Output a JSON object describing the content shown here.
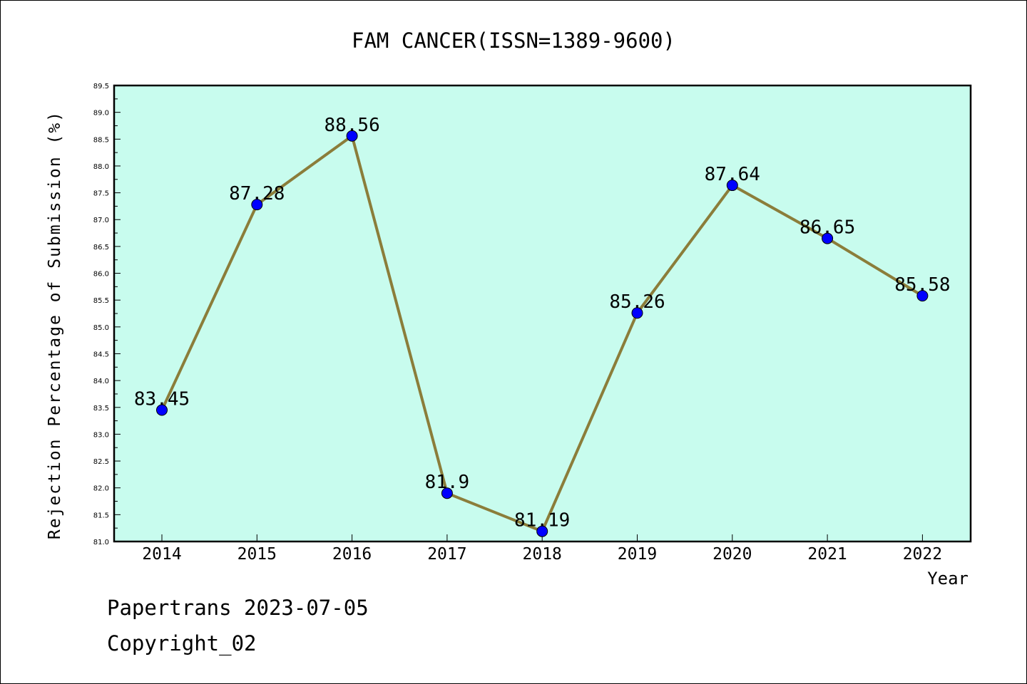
{
  "chart_data": {
    "type": "line",
    "title": "FAM CANCER(ISSN=1389-9600)",
    "xlabel": "Year",
    "ylabel": "Rejection Percentage of Submission (%)",
    "categories": [
      "2014",
      "2015",
      "2016",
      "2017",
      "2018",
      "2019",
      "2020",
      "2021",
      "2022"
    ],
    "values": [
      83.45,
      87.28,
      88.56,
      81.9,
      81.19,
      85.26,
      87.64,
      86.65,
      85.58
    ],
    "data_labels": [
      "83.45",
      "87.28",
      "88.56",
      "81.9",
      "81.19",
      "85.26",
      "87.64",
      "86.65",
      "85.58"
    ],
    "ylim": [
      81.0,
      89.5
    ],
    "yticks": [
      "81.0",
      "81.5",
      "82.0",
      "82.5",
      "83.0",
      "83.5",
      "84.0",
      "84.5",
      "85.0",
      "85.5",
      "86.0",
      "86.5",
      "87.0",
      "87.5",
      "88.0",
      "88.5",
      "89.0",
      "89.5"
    ],
    "colors": {
      "plot_background": "#c8fcee",
      "line": "#8b7d3a",
      "marker": "#0000ff"
    },
    "grid": false,
    "legend": "none"
  },
  "footer": {
    "line1": "Papertrans 2023-07-05",
    "line2": "Copyright_02"
  }
}
